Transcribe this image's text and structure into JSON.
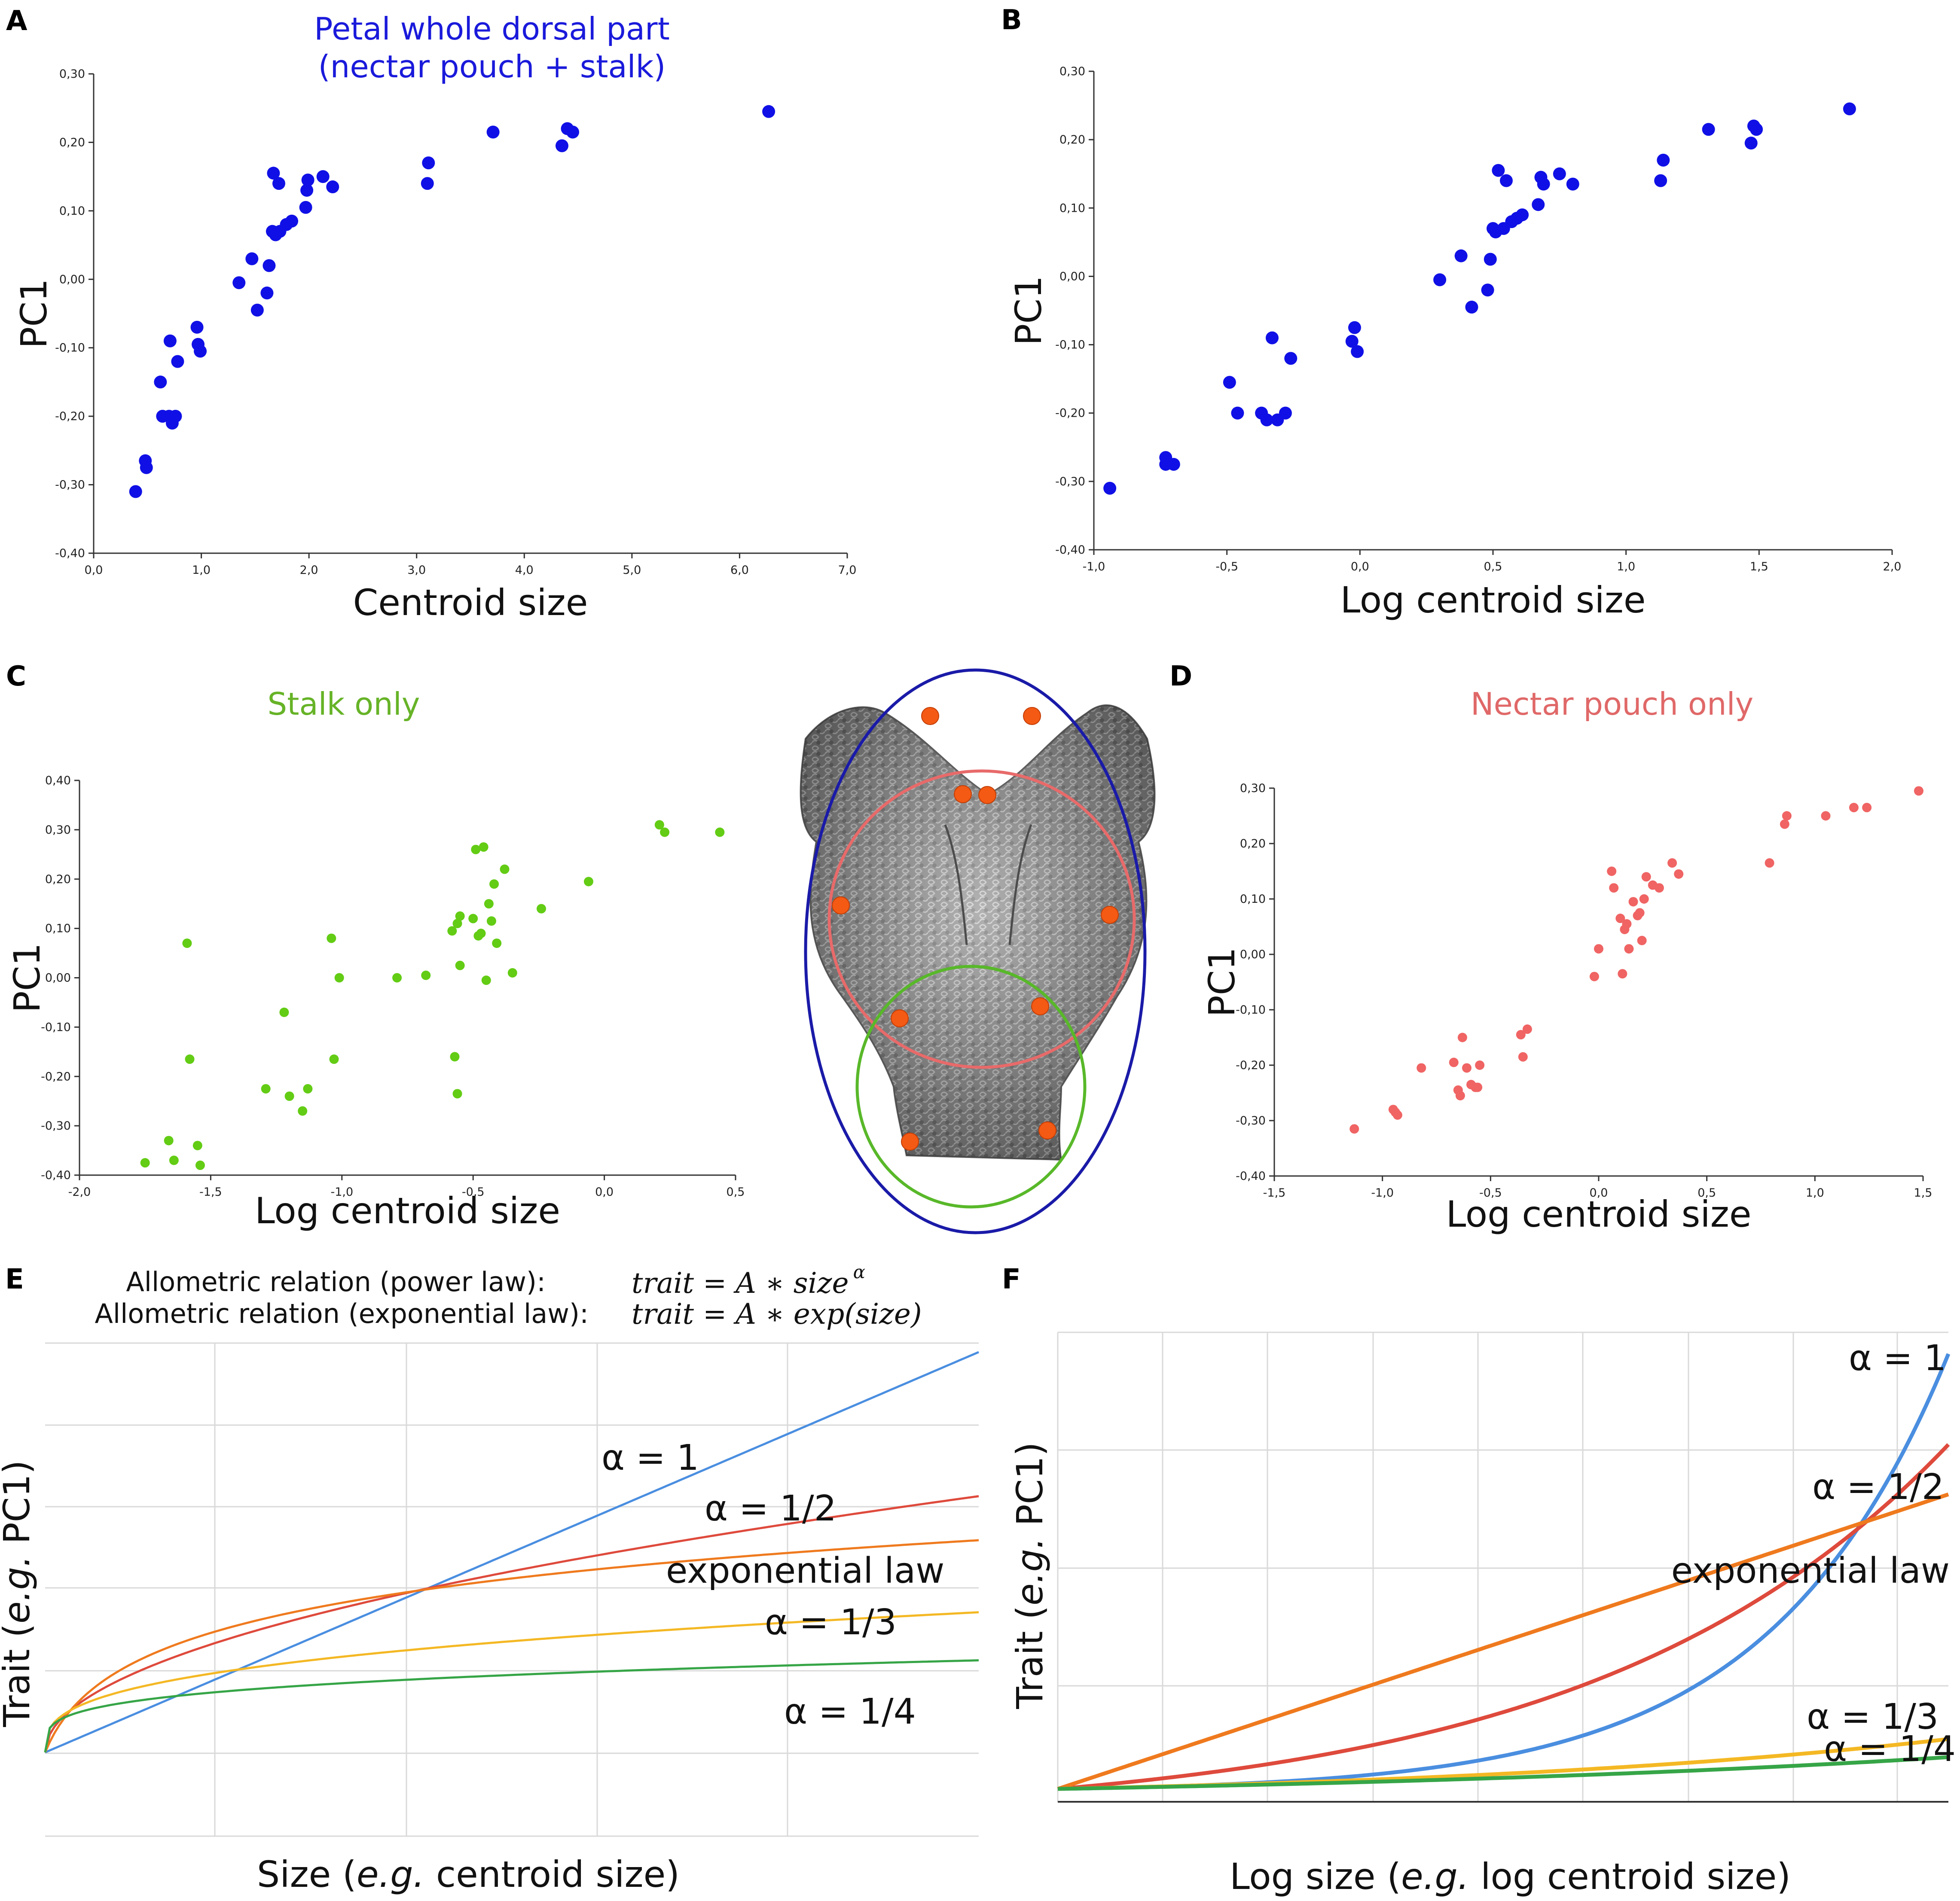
{
  "figure": {
    "panel_labels": [
      "A",
      "B",
      "C",
      "D",
      "E",
      "F"
    ]
  },
  "chart_data": [
    {
      "panel": "A",
      "type": "scatter",
      "title": "Petal whole dorsal part\n(nectar pouch + stalk)",
      "title_color": "#1a1adb",
      "point_color": "#1010e6",
      "xlabel": "Centroid size",
      "ylabel": "PC1",
      "xlim": [
        0.0,
        7.0
      ],
      "ylim": [
        -0.4,
        0.3
      ],
      "xticks": [
        0,
        1,
        2,
        3,
        4,
        5,
        6,
        7
      ],
      "xtick_labels": [
        "0,0",
        "1,0",
        "2,0",
        "3,0",
        "4,0",
        "5,0",
        "6,0",
        "7,0"
      ],
      "yticks": [
        -0.4,
        -0.3,
        -0.2,
        -0.1,
        0,
        0.1,
        0.2,
        0.3
      ],
      "ytick_labels": [
        "-0,40",
        "-0,30",
        "-0,20",
        "-0,10",
        "0,00",
        "0,10",
        "0,20",
        "0,30"
      ],
      "x": [
        0.39,
        0.48,
        0.49,
        0.62,
        0.64,
        0.7,
        0.71,
        0.73,
        0.76,
        0.78,
        0.96,
        0.97,
        0.99,
        1.35,
        1.47,
        1.52,
        1.61,
        1.63,
        1.66,
        1.67,
        1.69,
        1.72,
        1.73,
        1.79,
        1.84,
        1.97,
        1.98,
        1.99,
        2.13,
        2.22,
        3.1,
        3.11,
        3.71,
        4.35,
        4.4,
        4.45,
        6.27
      ],
      "y": [
        -0.31,
        -0.265,
        -0.275,
        -0.15,
        -0.2,
        -0.2,
        -0.09,
        -0.21,
        -0.2,
        -0.12,
        -0.07,
        -0.095,
        -0.105,
        -0.005,
        0.03,
        -0.045,
        -0.02,
        0.02,
        0.07,
        0.155,
        0.065,
        0.14,
        0.07,
        0.08,
        0.085,
        0.105,
        0.13,
        0.145,
        0.15,
        0.135,
        0.14,
        0.17,
        0.215,
        0.195,
        0.22,
        0.215,
        0.245
      ]
    },
    {
      "panel": "B",
      "type": "scatter",
      "title": "",
      "point_color": "#1010e6",
      "xlabel": "Log centroid size",
      "ylabel": "PC1",
      "xlim": [
        -1.0,
        2.0
      ],
      "ylim": [
        -0.4,
        0.3
      ],
      "xticks": [
        -1.0,
        -0.5,
        0.0,
        0.5,
        1.0,
        1.5,
        2.0
      ],
      "xtick_labels": [
        "-1,0",
        "-0,5",
        "0,0",
        "0,5",
        "1,0",
        "1,5",
        "2,0"
      ],
      "yticks": [
        -0.4,
        -0.3,
        -0.2,
        -0.1,
        0,
        0.1,
        0.2,
        0.3
      ],
      "ytick_labels": [
        "-0,40",
        "-0,30",
        "-0,20",
        "-0,10",
        "0,00",
        "0,10",
        "0,20",
        "0,30"
      ],
      "x": [
        -0.94,
        -0.73,
        -0.73,
        -0.7,
        -0.49,
        -0.46,
        -0.37,
        -0.35,
        -0.33,
        -0.31,
        -0.28,
        -0.26,
        -0.03,
        -0.02,
        -0.01,
        0.3,
        0.38,
        0.42,
        0.48,
        0.49,
        0.5,
        0.51,
        0.52,
        0.54,
        0.55,
        0.57,
        0.59,
        0.61,
        0.67,
        0.68,
        0.69,
        0.75,
        0.8,
        1.13,
        1.14,
        1.31,
        1.47,
        1.48,
        1.49,
        1.84
      ],
      "y": [
        -0.31,
        -0.265,
        -0.275,
        -0.275,
        -0.155,
        -0.2,
        -0.2,
        -0.21,
        -0.09,
        -0.21,
        -0.2,
        -0.12,
        -0.095,
        -0.075,
        -0.11,
        -0.005,
        0.03,
        -0.045,
        -0.02,
        0.025,
        0.07,
        0.065,
        0.155,
        0.07,
        0.14,
        0.08,
        0.085,
        0.09,
        0.105,
        0.145,
        0.135,
        0.15,
        0.135,
        0.14,
        0.17,
        0.215,
        0.195,
        0.22,
        0.215,
        0.245
      ]
    },
    {
      "panel": "C",
      "type": "scatter",
      "title": "Stalk only",
      "title_color": "#66b327",
      "point_color": "#63cc14",
      "xlabel": "Log centroid size",
      "ylabel": "PC1",
      "xlim": [
        -2.0,
        0.5
      ],
      "ylim": [
        -0.4,
        0.4
      ],
      "xticks": [
        -2.0,
        -1.5,
        -1.0,
        -0.5,
        0.0,
        0.5
      ],
      "xtick_labels": [
        "-2,0",
        "-1,5",
        "-1,0",
        "-0,5",
        "0,0",
        "0,5"
      ],
      "yticks": [
        -0.4,
        -0.3,
        -0.2,
        -0.1,
        0,
        0.1,
        0.2,
        0.3,
        0.4
      ],
      "ytick_labels": [
        "-0,40",
        "-0,30",
        "-0,20",
        "-0,10",
        "0,00",
        "0,10",
        "0,20",
        "0,30",
        "0,40"
      ],
      "x": [
        -1.75,
        -1.66,
        -1.64,
        -1.59,
        -1.58,
        -1.55,
        -1.54,
        -1.29,
        -1.22,
        -1.2,
        -1.15,
        -1.13,
        -1.04,
        -1.03,
        -1.01,
        -0.79,
        -0.68,
        -0.58,
        -0.57,
        -0.56,
        -0.56,
        -0.55,
        -0.55,
        -0.5,
        -0.49,
        -0.48,
        -0.47,
        -0.46,
        -0.45,
        -0.44,
        -0.43,
        -0.42,
        -0.41,
        -0.38,
        -0.35,
        -0.24,
        -0.06,
        0.21,
        0.23,
        0.44
      ],
      "y": [
        -0.375,
        -0.33,
        -0.37,
        0.07,
        -0.165,
        -0.34,
        -0.38,
        -0.225,
        -0.07,
        -0.24,
        -0.27,
        -0.225,
        0.08,
        -0.165,
        0.0,
        0.0,
        0.005,
        0.095,
        -0.16,
        0.11,
        -0.235,
        0.125,
        0.025,
        0.12,
        0.26,
        0.085,
        0.09,
        0.265,
        -0.005,
        0.15,
        0.115,
        0.19,
        0.07,
        0.22,
        0.01,
        0.14,
        0.195,
        0.31,
        0.295,
        0.295
      ]
    },
    {
      "panel": "D",
      "type": "scatter",
      "title": "Nectar pouch only",
      "title_color": "#e06868",
      "point_color": "#f06464",
      "xlabel": "Log centroid size",
      "ylabel": "PC1",
      "xlim": [
        -1.5,
        1.5
      ],
      "ylim": [
        -0.4,
        0.3
      ],
      "xticks": [
        -1.5,
        -1.0,
        -0.5,
        0.0,
        0.5,
        1.0,
        1.5
      ],
      "xtick_labels": [
        "-1,5",
        "-1,0",
        "-0,5",
        "0,0",
        "0,5",
        "1,0",
        "1,5"
      ],
      "yticks": [
        -0.4,
        -0.3,
        -0.2,
        -0.1,
        0,
        0.1,
        0.2,
        0.3
      ],
      "ytick_labels": [
        "-0,40",
        "-0,30",
        "-0,20",
        "-0,10",
        "0,00",
        "0,10",
        "0,20",
        "0,30"
      ],
      "x": [
        -1.13,
        -0.95,
        -0.94,
        -0.93,
        -0.82,
        -0.67,
        -0.65,
        -0.64,
        -0.63,
        -0.61,
        -0.59,
        -0.57,
        -0.56,
        -0.55,
        -0.36,
        -0.35,
        -0.33,
        -0.02,
        0.0,
        0.06,
        0.07,
        0.1,
        0.11,
        0.12,
        0.13,
        0.14,
        0.16,
        0.18,
        0.19,
        0.2,
        0.21,
        0.22,
        0.25,
        0.28,
        0.34,
        0.37,
        0.79,
        0.86,
        0.87,
        1.05,
        1.18,
        1.24,
        1.48
      ],
      "y": [
        -0.315,
        -0.28,
        -0.285,
        -0.29,
        -0.205,
        -0.195,
        -0.245,
        -0.255,
        -0.15,
        -0.205,
        -0.235,
        -0.24,
        -0.24,
        -0.2,
        -0.145,
        -0.185,
        -0.135,
        -0.04,
        0.01,
        0.15,
        0.12,
        0.065,
        -0.035,
        0.045,
        0.055,
        0.01,
        0.095,
        0.07,
        0.075,
        0.025,
        0.1,
        0.14,
        0.125,
        0.12,
        0.165,
        0.145,
        0.165,
        0.235,
        0.25,
        0.25,
        0.265,
        0.265,
        0.295
      ]
    },
    {
      "panel": "E",
      "type": "line",
      "title": "",
      "formulas": [
        {
          "label": "Allometric relation (power law):",
          "equation": "trait  = A ∗ size",
          "superscript": "α"
        },
        {
          "label": "Allometric relation (exponential law):",
          "equation": "trait  = A ∗ exp(size)",
          "superscript": ""
        }
      ],
      "xlabel_parts": [
        "Size (",
        "e.g.",
        " centroid size)"
      ],
      "ylabel_parts": [
        "Trait (",
        "e.g.",
        " PC1)"
      ],
      "series": [
        {
          "name": "α = 1",
          "color": "#4a8ee0",
          "law": "power",
          "exponent": 1.0,
          "at_max": 1.0
        },
        {
          "name": "α = 1/2",
          "color": "#de4a3c",
          "law": "power",
          "exponent": 0.5,
          "at_max": 0.64
        },
        {
          "name": "exponential law",
          "color": "#ef7a1e",
          "law": "log",
          "exponent": 0,
          "at_max": 0.53
        },
        {
          "name": "α = 1/3",
          "color": "#f4b824",
          "law": "power",
          "exponent": 0.3333,
          "at_max": 0.35
        },
        {
          "name": "α = 1/4",
          "color": "#36a547",
          "law": "power",
          "exponent": 0.25,
          "at_max": 0.23
        }
      ]
    },
    {
      "panel": "F",
      "type": "line",
      "title": "",
      "xlabel_parts": [
        "Log size (",
        "e.g.",
        " log centroid size)"
      ],
      "ylabel_parts": [
        "Trait (",
        "e.g.",
        " PC1)"
      ],
      "series": [
        {
          "name": "α = 1",
          "color": "#4a8ee0",
          "law": "exp",
          "rate": 1.0,
          "at_max": 0.96
        },
        {
          "name": "α = 1/2",
          "color": "#de4a3c",
          "law": "exp",
          "rate": 0.5,
          "at_max": 0.76
        },
        {
          "name": "exponential law",
          "color": "#ef7a1e",
          "law": "linear",
          "rate": 0,
          "at_max": 0.65
        },
        {
          "name": "α = 1/3",
          "color": "#f4b824",
          "law": "exp",
          "rate": 0.3333,
          "at_max": 0.11
        },
        {
          "name": "α = 1/4",
          "color": "#36a547",
          "law": "exp",
          "rate": 0.25,
          "at_max": 0.07
        }
      ]
    }
  ],
  "specimen_image": {
    "description_name": "petal-sem-micrograph",
    "ellipse_colors": {
      "whole": "#1a1aa8",
      "pouch": "#e86a6a",
      "stalk": "#58b829"
    },
    "landmark_color": "#f45a14"
  }
}
